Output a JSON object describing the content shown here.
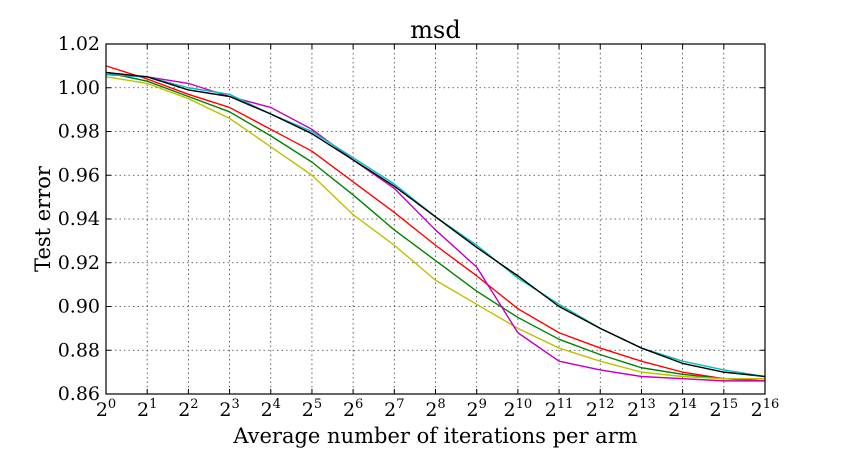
{
  "chart_data": {
    "type": "line",
    "title": "msd",
    "xlabel": "Average number of iterations per arm",
    "ylabel": "Test error",
    "x_scale": "log2",
    "x": [
      1,
      2,
      4,
      8,
      16,
      32,
      64,
      128,
      256,
      512,
      1024,
      2048,
      4096,
      8192,
      16384,
      32768,
      65536
    ],
    "x_tick_labels": [
      {
        "base": "2",
        "exp": "0"
      },
      {
        "base": "2",
        "exp": "1"
      },
      {
        "base": "2",
        "exp": "2"
      },
      {
        "base": "2",
        "exp": "3"
      },
      {
        "base": "2",
        "exp": "4"
      },
      {
        "base": "2",
        "exp": "5"
      },
      {
        "base": "2",
        "exp": "6"
      },
      {
        "base": "2",
        "exp": "7"
      },
      {
        "base": "2",
        "exp": "8"
      },
      {
        "base": "2",
        "exp": "9"
      },
      {
        "base": "2",
        "exp": "10"
      },
      {
        "base": "2",
        "exp": "11"
      },
      {
        "base": "2",
        "exp": "12"
      },
      {
        "base": "2",
        "exp": "13"
      },
      {
        "base": "2",
        "exp": "14"
      },
      {
        "base": "2",
        "exp": "15"
      },
      {
        "base": "2",
        "exp": "16"
      }
    ],
    "y_ticks": [
      "0.86",
      "0.88",
      "0.90",
      "0.92",
      "0.94",
      "0.96",
      "0.98",
      "1.00",
      "1.02"
    ],
    "ylim": [
      0.86,
      1.02
    ],
    "grid": true,
    "legend": "none",
    "series": [
      {
        "color": "#ff0000",
        "values": [
          1.01,
          1.004,
          0.997,
          0.991,
          0.981,
          0.971,
          0.957,
          0.943,
          0.928,
          0.914,
          0.899,
          0.888,
          0.881,
          0.875,
          0.87,
          0.867,
          0.866
        ]
      },
      {
        "color": "#008000",
        "values": [
          1.007,
          1.003,
          0.996,
          0.989,
          0.978,
          0.966,
          0.951,
          0.935,
          0.921,
          0.907,
          0.895,
          0.885,
          0.878,
          0.872,
          0.869,
          0.867,
          0.867
        ]
      },
      {
        "color": "#bfbf00",
        "values": [
          1.005,
          1.002,
          0.995,
          0.986,
          0.973,
          0.96,
          0.942,
          0.928,
          0.912,
          0.901,
          0.89,
          0.881,
          0.875,
          0.87,
          0.868,
          0.867,
          0.867
        ]
      },
      {
        "color": "#bf00bf",
        "values": [
          1.006,
          1.005,
          1.002,
          0.996,
          0.991,
          0.981,
          0.967,
          0.954,
          0.935,
          0.918,
          0.888,
          0.875,
          0.871,
          0.868,
          0.867,
          0.866,
          0.866
        ]
      },
      {
        "color": "#00bfbf",
        "values": [
          1.006,
          1.005,
          1.0,
          0.997,
          0.988,
          0.98,
          0.968,
          0.956,
          0.941,
          0.928,
          0.913,
          0.901,
          0.89,
          0.881,
          0.875,
          0.871,
          0.868
        ]
      },
      {
        "color": "#000000",
        "values": [
          1.007,
          1.005,
          0.999,
          0.996,
          0.988,
          0.979,
          0.967,
          0.955,
          0.941,
          0.927,
          0.914,
          0.9,
          0.89,
          0.881,
          0.874,
          0.87,
          0.868
        ]
      }
    ]
  }
}
